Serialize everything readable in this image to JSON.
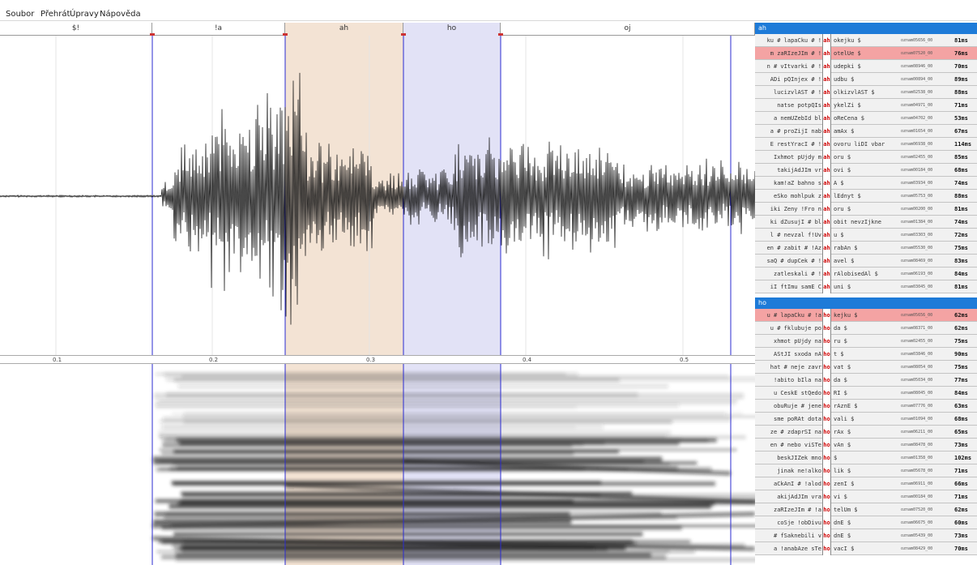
{
  "menu": [
    {
      "label": "Soubor"
    },
    {
      "label": "Přehrát"
    },
    {
      "label": "Úpravy"
    },
    {
      "label": "Nápověda"
    }
  ],
  "segments": [
    {
      "label": "$!"
    },
    {
      "label": "!a"
    },
    {
      "label": "ah"
    },
    {
      "label": "ho"
    },
    {
      "label": "oj"
    }
  ],
  "axis_ticks": [
    "0.1",
    "0.2",
    "0.3",
    "0.4",
    "0.5"
  ],
  "colors": {
    "selection_ah": "#f3e3d4",
    "selection_ho": "#e2e2f6",
    "boundary_line": "#2b2bd1",
    "panel_header": "#1e7bd8",
    "highlight_row": "#f4a3a3"
  },
  "panels": [
    {
      "title": "ah",
      "rows": [
        {
          "left": "ku # lapaCku # !",
          "leftc": "blue",
          "mid": "ah",
          "right": "okejku $",
          "rightc": "red",
          "file": "oznam05656_00",
          "dur": "81ms",
          "hl": false
        },
        {
          "left": "m zaRIzeJIm # !",
          "leftc": "blue",
          "mid": "ah",
          "right": "otelUe $",
          "rightc": "red",
          "file": "oznam07520_00",
          "dur": "76ms",
          "hl": true
        },
        {
          "left": "n # vItvarki # !",
          "leftc": "blue",
          "mid": "ah",
          "right": "udepki $",
          "rightc": "red",
          "file": "oznam08946_00",
          "dur": "70ms",
          "hl": false
        },
        {
          "left": "ADi pQInjex # !",
          "leftc": "blue",
          "mid": "ah",
          "right": "udbu $",
          "rightc": "red",
          "file": "oznam00894_00",
          "dur": "89ms",
          "hl": false
        },
        {
          "left": "lucizvlAST # !",
          "leftc": "blue",
          "mid": "ah",
          "right": "olkizvlAST $",
          "rightc": "red",
          "file": "oznam02538_00",
          "dur": "88ms",
          "hl": false
        },
        {
          "left": "natse potpQIs",
          "leftc": "",
          "mid": "ah",
          "right": "ykelZi $",
          "rightc": "red",
          "file": "oznam04971_00",
          "dur": "71ms",
          "hl": false
        },
        {
          "left": "a nemUZebId bl",
          "leftc": "",
          "mid": "ah",
          "right": "oReCena $",
          "rightc": "red",
          "file": "oznam04702_00",
          "dur": "53ms",
          "hl": false
        },
        {
          "left": "a # proZijI nab",
          "leftc": "blue",
          "mid": "ah",
          "right": "amAx $",
          "rightc": "red",
          "file": "oznam01654_00",
          "dur": "67ms",
          "hl": false
        },
        {
          "left": "E restYracI # !",
          "leftc": "blue",
          "mid": "ah",
          "right": "ovoru liDI vbar",
          "rightc": "",
          "file": "oznam06938_00",
          "dur": "114ms",
          "hl": false
        },
        {
          "left": "Ixhmot pUjdy m",
          "leftc": "",
          "mid": "ah",
          "right": "oru $",
          "rightc": "red",
          "file": "oznam02455_00",
          "dur": "85ms",
          "hl": false
        },
        {
          "left": "takijAdJIm vr",
          "leftc": "",
          "mid": "ah",
          "right": "ovi $",
          "rightc": "red",
          "file": "oznam00184_00",
          "dur": "68ms",
          "hl": false
        },
        {
          "left": "kam!aZ bahno s",
          "leftc": "",
          "mid": "ah",
          "right": "A $",
          "rightc": "red",
          "file": "oznam03934_00",
          "dur": "74ms",
          "hl": false
        },
        {
          "left": "eSko mohlpuk z",
          "leftc": "",
          "mid": "ah",
          "right": "lEdnyt $",
          "rightc": "red",
          "file": "oznam05753_00",
          "dur": "88ms",
          "hl": false
        },
        {
          "left": "iki Zeny !Fro n",
          "leftc": "",
          "mid": "ah",
          "right": "oru $",
          "rightc": "red",
          "file": "oznam00200_00",
          "dur": "81ms",
          "hl": false
        },
        {
          "left": "ki dZusujI # bl",
          "leftc": "",
          "mid": "ah",
          "right": "obit nevzIjkne",
          "rightc": "",
          "file": "oznam01384_00",
          "dur": "74ms",
          "hl": false
        },
        {
          "left": "l # nevzal f!Uv",
          "leftc": "blue",
          "mid": "ah",
          "right": "u $",
          "rightc": "red",
          "file": "oznam03303_00",
          "dur": "72ms",
          "hl": false
        },
        {
          "left": "en # zabit # !Az",
          "leftc": "blue",
          "mid": "ah",
          "right": "rabAn $",
          "rightc": "red",
          "file": "oznam05530_00",
          "dur": "75ms",
          "hl": false
        },
        {
          "left": "saQ # dupCek # !",
          "leftc": "blue",
          "mid": "ah",
          "right": "avel $",
          "rightc": "red",
          "file": "oznam08469_00",
          "dur": "83ms",
          "hl": false
        },
        {
          "left": "zatleskali # !",
          "leftc": "blue",
          "mid": "ah",
          "right": "rAlobisedAl $",
          "rightc": "",
          "file": "oznam06193_00",
          "dur": "84ms",
          "hl": false
        },
        {
          "left": "iI ftImu samE C",
          "leftc": "",
          "mid": "ah",
          "right": "uni $",
          "rightc": "red",
          "file": "oznam03045_00",
          "dur": "81ms",
          "hl": false
        }
      ]
    },
    {
      "title": "ho",
      "rows": [
        {
          "left": "u # lapaCku # !a",
          "leftc": "red",
          "mid": "ho",
          "right": "kejku $",
          "rightc": "red",
          "file": "oznam05656_00",
          "dur": "62ms",
          "hl": true
        },
        {
          "left": "u # fklubuje po",
          "leftc": "blue",
          "mid": "ho",
          "right": "da $",
          "rightc": "red",
          "file": "oznam08371_00",
          "dur": "62ms",
          "hl": false
        },
        {
          "left": "xhmot pUjdy na",
          "leftc": "",
          "mid": "ho",
          "right": "ru $",
          "rightc": "red",
          "file": "oznam02455_00",
          "dur": "75ms",
          "hl": false
        },
        {
          "left": "AStJI sxoda nA",
          "leftc": "",
          "mid": "ho",
          "right": "t $",
          "rightc": "red",
          "file": "oznam03846_00",
          "dur": "90ms",
          "hl": false
        },
        {
          "left": "hat # neje zavr",
          "leftc": "blue",
          "mid": "ho",
          "right": "vat $",
          "rightc": "red",
          "file": "oznam08054_00",
          "dur": "75ms",
          "hl": false
        },
        {
          "left": "!abito bIla na",
          "leftc": "",
          "mid": "ho",
          "right": "da $",
          "rightc": "red",
          "file": "oznam05034_00",
          "dur": "77ms",
          "hl": false
        },
        {
          "left": "u CeskE stQedo",
          "leftc": "",
          "mid": "ho",
          "right": "RI $",
          "rightc": "red",
          "file": "oznam08045_00",
          "dur": "84ms",
          "hl": false
        },
        {
          "left": "obuRuje # jene",
          "leftc": "blue",
          "mid": "ho",
          "right": "rAznE $",
          "rightc": "red",
          "file": "oznam07776_00",
          "dur": "63ms",
          "hl": false
        },
        {
          "left": "sme poRAt dota",
          "leftc": "",
          "mid": "ho",
          "right": "vali $",
          "rightc": "red",
          "file": "oznam01094_00",
          "dur": "68ms",
          "hl": false
        },
        {
          "left": "ze # zdaprSI na",
          "leftc": "blue",
          "mid": "ho",
          "right": "rAx $",
          "rightc": "red",
          "file": "oznam06211_00",
          "dur": "65ms",
          "hl": false
        },
        {
          "left": "en # nebo viSTe",
          "leftc": "blue",
          "mid": "ho",
          "right": "vAn $",
          "rightc": "red",
          "file": "oznam08478_00",
          "dur": "73ms",
          "hl": false
        },
        {
          "left": "beskJIZek mno",
          "leftc": "",
          "mid": "ho",
          "right": " $",
          "rightc": "",
          "file": "oznam01358_00",
          "dur": "102ms",
          "hl": false
        },
        {
          "left": "jinak ne!alko",
          "leftc": "",
          "mid": "ho",
          "right": "lik $",
          "rightc": "red",
          "file": "oznam05678_00",
          "dur": "71ms",
          "hl": false
        },
        {
          "left": "aCkAnI # !alod",
          "leftc": "blue",
          "mid": "ho",
          "right": "zenI $",
          "rightc": "red",
          "file": "oznam06911_00",
          "dur": "66ms",
          "hl": false
        },
        {
          "left": "akijAdJIm vra",
          "leftc": "",
          "mid": "ho",
          "right": "vi $",
          "rightc": "red",
          "file": "oznam00184_00",
          "dur": "71ms",
          "hl": false
        },
        {
          "left": "zaRIzeJIm # !a",
          "leftc": "blue",
          "mid": "ho",
          "right": "telUm $",
          "rightc": "red",
          "file": "oznam07520_00",
          "dur": "62ms",
          "hl": false
        },
        {
          "left": "coSje !obDivu",
          "leftc": "",
          "mid": "ho",
          "right": "dnE $",
          "rightc": "red",
          "file": "oznam06675_00",
          "dur": "60ms",
          "hl": false
        },
        {
          "left": "# fSaknebili v",
          "leftc": "",
          "mid": "ho",
          "right": "dnE $",
          "rightc": "red",
          "file": "oznam05439_00",
          "dur": "73ms",
          "hl": false
        },
        {
          "left": "a !anabAze sTe",
          "leftc": "",
          "mid": "ho",
          "right": "vacI $",
          "rightc": "red",
          "file": "oznam08429_00",
          "dur": "70ms",
          "hl": false
        }
      ]
    }
  ]
}
